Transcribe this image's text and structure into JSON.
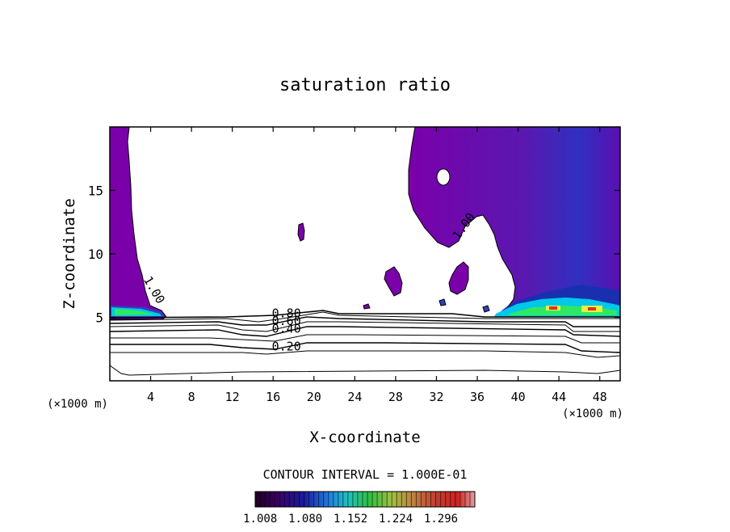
{
  "chart_data": {
    "type": "contour",
    "title": "saturation ratio",
    "xlabel": "X-coordinate",
    "ylabel": "Z-coordinate",
    "x_unit_left": "(×1000 m)",
    "x_unit_right": "(×1000 m)",
    "xlim": [
      0,
      50
    ],
    "ylim": [
      0,
      20
    ],
    "x_ticks": [
      4,
      8,
      12,
      16,
      20,
      24,
      28,
      32,
      36,
      40,
      44,
      48
    ],
    "y_ticks": [
      5,
      10,
      15
    ],
    "contour_interval_text": "CONTOUR INTERVAL = 1.000E-01",
    "contour_labels": [
      {
        "text": "1.00",
        "x": 4.0,
        "z": 7.0,
        "rotate": 60
      },
      {
        "text": "1.00",
        "x": 35.0,
        "z": 12.0,
        "rotate": -55
      },
      {
        "text": "0.80",
        "x": 17.3,
        "z": 5.0,
        "rotate": 0
      },
      {
        "text": "0.60",
        "x": 17.3,
        "z": 4.4,
        "rotate": 0
      },
      {
        "text": "0.40",
        "x": 17.3,
        "z": 3.8,
        "rotate": 0
      },
      {
        "text": "0.20",
        "x": 17.3,
        "z": 2.4,
        "rotate": 0
      }
    ],
    "colorbar": {
      "min": 1.0,
      "max": 1.35,
      "tick_labels": [
        "1.008",
        "1.080",
        "1.152",
        "1.224",
        "1.296"
      ]
    },
    "colors": {
      "supersat_fill": "#7a00aa",
      "supersat_dark": "#5c1aa8",
      "supersat_blue": "#2f3fbf",
      "cyan": "#00c8e8",
      "green": "#30e860",
      "yellow": "#e8f040",
      "red": "#e03020"
    }
  }
}
